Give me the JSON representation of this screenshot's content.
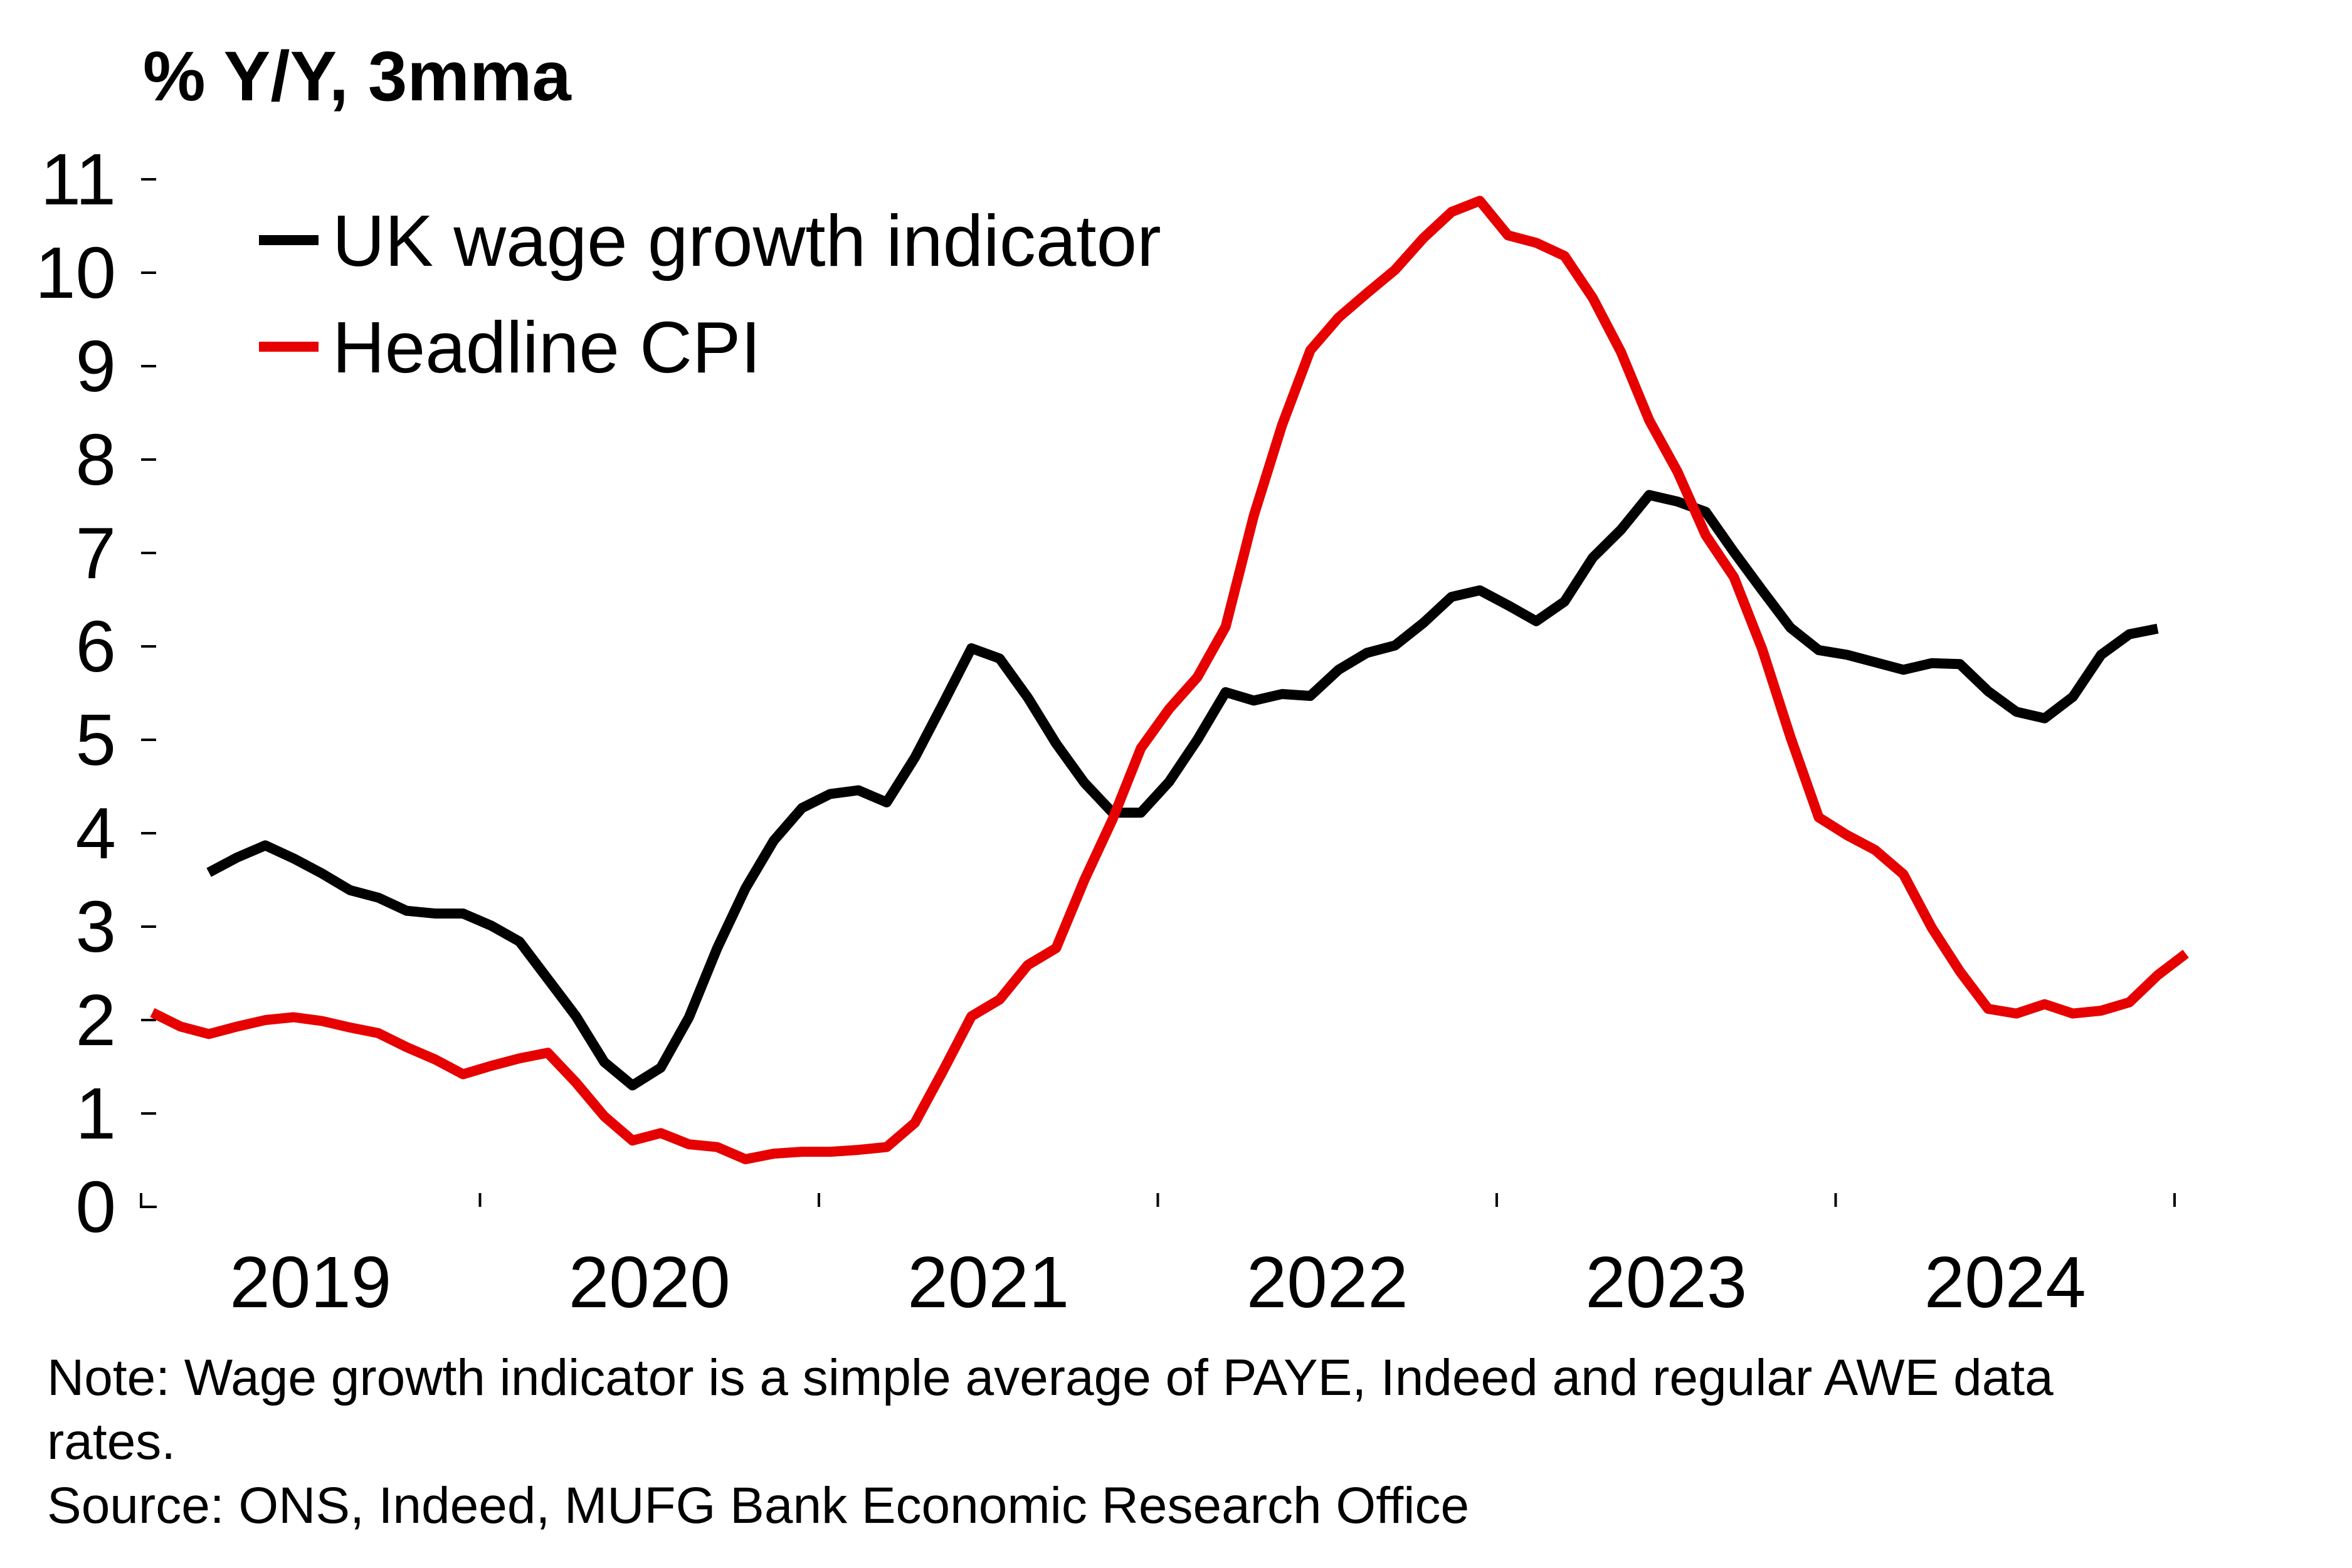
{
  "chart_data": {
    "type": "line",
    "title": "% Y/Y, 3mma",
    "xlabel": "",
    "ylabel": "% Y/Y, 3mma",
    "ylim": [
      0,
      11
    ],
    "yticks": [
      0,
      1,
      2,
      3,
      4,
      5,
      6,
      7,
      8,
      9,
      10,
      11
    ],
    "x_start": "2019-01",
    "x_end": "2025-01",
    "x_frequency": "monthly",
    "xtick_labels": [
      "2019",
      "2020",
      "2021",
      "2022",
      "2023",
      "2024"
    ],
    "grid": false,
    "legend_position": "top-left",
    "series": [
      {
        "name": "UK wage growth indicator",
        "color": "#000000",
        "start": "2019-03",
        "values": [
          3.58,
          3.74,
          3.87,
          3.73,
          3.57,
          3.39,
          3.31,
          3.17,
          3.14,
          3.14,
          3.01,
          2.84,
          2.44,
          2.04,
          1.55,
          1.3,
          1.49,
          2.03,
          2.77,
          3.41,
          3.92,
          4.27,
          4.42,
          4.46,
          4.33,
          4.81,
          5.39,
          5.98,
          5.87,
          5.45,
          4.96,
          4.54,
          4.22,
          4.22,
          4.55,
          5.0,
          5.51,
          5.42,
          5.49,
          5.47,
          5.75,
          5.93,
          6.01,
          6.25,
          6.53,
          6.6,
          6.44,
          6.27,
          6.48,
          6.95,
          7.25,
          7.62,
          7.55,
          7.44,
          7.01,
          6.6,
          6.2,
          5.96,
          5.91,
          5.83,
          5.75,
          5.82,
          5.81,
          5.52,
          5.3,
          5.23,
          5.46,
          5.91,
          6.13,
          6.19
        ]
      },
      {
        "name": "Headline CPI",
        "color": "#e60000",
        "start": "2019-01",
        "values": [
          2.08,
          1.93,
          1.85,
          1.93,
          2.0,
          2.03,
          1.99,
          1.92,
          1.86,
          1.71,
          1.58,
          1.42,
          1.51,
          1.59,
          1.65,
          1.33,
          0.97,
          0.71,
          0.79,
          0.67,
          0.64,
          0.51,
          0.57,
          0.59,
          0.59,
          0.61,
          0.64,
          0.9,
          1.46,
          2.04,
          2.22,
          2.59,
          2.77,
          3.5,
          4.15,
          4.91,
          5.33,
          5.67,
          6.21,
          7.4,
          8.37,
          9.17,
          9.52,
          9.78,
          10.03,
          10.37,
          10.65,
          10.77,
          10.4,
          10.32,
          10.18,
          9.73,
          9.15,
          8.42,
          7.87,
          7.19,
          6.74,
          5.97,
          5.03,
          4.17,
          3.98,
          3.82,
          3.56,
          2.99,
          2.52,
          2.12,
          2.07,
          2.17,
          2.07,
          2.1,
          2.19,
          2.48,
          2.71
        ]
      }
    ]
  },
  "notes": {
    "note_line1": "Note: Wage growth indicator is a simple average of PAYE, Indeed and regular AWE data",
    "note_line2": "rates.",
    "source": "Source: ONS, Indeed, MUFG Bank Economic Research Office"
  }
}
